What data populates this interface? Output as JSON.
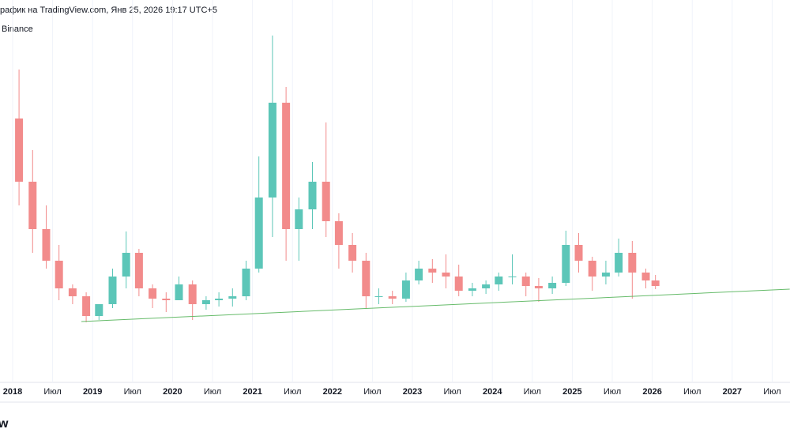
{
  "header": {
    "title": "рафик на TradingView.com, Янв 25, 2026 19:17 UTC+5",
    "source": "Binance"
  },
  "footer": {
    "logo": "w"
  },
  "chart_data": {
    "type": "candlestick",
    "up_color": "#5cc6b8",
    "down_color": "#f28b8b",
    "x": [
      2018.08,
      2018.25,
      2018.42,
      2018.58,
      2018.75,
      2018.92,
      2019.08,
      2019.25,
      2019.42,
      2019.58,
      2019.75,
      2019.92,
      2020.08,
      2020.25,
      2020.42,
      2020.58,
      2020.75,
      2020.92,
      2021.08,
      2021.25,
      2021.42,
      2021.58,
      2021.75,
      2021.92,
      2022.08,
      2022.25,
      2022.42,
      2022.58,
      2022.75,
      2022.92,
      2023.08,
      2023.25,
      2023.42,
      2023.58,
      2023.75,
      2023.92,
      2024.08,
      2024.25,
      2024.42,
      2024.58,
      2024.75,
      2024.92,
      2025.08,
      2025.25,
      2025.42,
      2025.58,
      2025.75,
      2025.92,
      2026.04
    ],
    "open": [
      320,
      240,
      180,
      140,
      105,
      95,
      70,
      85,
      120,
      150,
      105,
      92,
      90,
      110,
      85,
      90,
      92,
      95,
      130,
      220,
      340,
      180,
      205,
      240,
      190,
      160,
      140,
      95,
      95,
      92,
      115,
      130,
      125,
      120,
      102,
      105,
      110,
      120,
      120,
      108,
      105,
      112,
      160,
      140,
      120,
      125,
      150,
      125,
      115
    ],
    "high": [
      382,
      280,
      210,
      160,
      110,
      100,
      85,
      130,
      177,
      155,
      110,
      100,
      120,
      115,
      95,
      100,
      105,
      140,
      272,
      425,
      360,
      220,
      265,
      315,
      200,
      175,
      150,
      105,
      102,
      125,
      140,
      142,
      148,
      135,
      112,
      115,
      125,
      148,
      125,
      118,
      120,
      178,
      175,
      145,
      140,
      168,
      165,
      130,
      122
    ],
    "low": [
      210,
      150,
      130,
      90,
      85,
      62,
      65,
      80,
      105,
      95,
      80,
      75,
      90,
      65,
      78,
      82,
      82,
      90,
      125,
      170,
      140,
      140,
      180,
      170,
      130,
      125,
      80,
      85,
      85,
      88,
      110,
      112,
      105,
      95,
      95,
      98,
      102,
      110,
      95,
      88,
      98,
      108,
      125,
      102,
      110,
      120,
      92,
      105,
      104
    ],
    "close": [
      240,
      180,
      140,
      105,
      95,
      70,
      85,
      120,
      150,
      105,
      92,
      90,
      110,
      85,
      90,
      92,
      95,
      130,
      220,
      340,
      180,
      205,
      240,
      190,
      160,
      140,
      95,
      95,
      92,
      115,
      130,
      125,
      120,
      102,
      105,
      110,
      120,
      120,
      108,
      105,
      112,
      160,
      140,
      120,
      125,
      150,
      125,
      115,
      108
    ],
    "xlim": [
      2017.842,
      2027.723
    ],
    "ylim": [
      0,
      430
    ],
    "xticks": [
      2018,
      {
        "value": 2018.5,
        "label": "Июл"
      },
      2019,
      {
        "value": 2019.5,
        "label": "Июл"
      },
      2020,
      {
        "value": 2020.5,
        "label": "Июл"
      },
      2021,
      {
        "value": 2021.5,
        "label": "Июл"
      },
      2022,
      {
        "value": 2022.5,
        "label": "Июл"
      },
      2023,
      {
        "value": 2023.5,
        "label": "Июл"
      },
      2024,
      {
        "value": 2024.5,
        "label": "Июл"
      },
      2025,
      {
        "value": 2025.5,
        "label": "Июл"
      },
      2026,
      {
        "value": 2026.5,
        "label": "Июл"
      },
      2027,
      {
        "value": 2027.5,
        "label": "Июл"
      }
    ],
    "trendline": {
      "x": [
        2018.86,
        2027.72
      ],
      "values": [
        63,
        104
      ],
      "color": "#66bb6a"
    }
  }
}
